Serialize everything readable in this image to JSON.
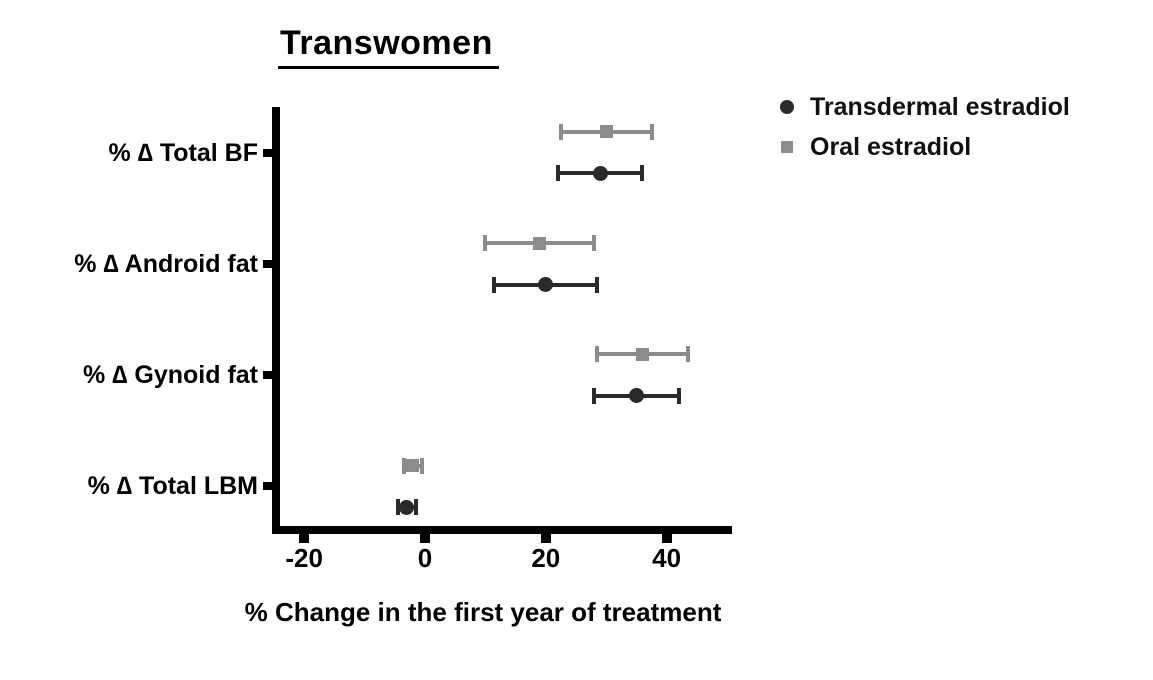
{
  "chart_data": {
    "type": "scatter",
    "subtype": "forest-dot-plot-with-error-bars",
    "title": "Transwomen",
    "xlabel": "% Change in the first year of treatment",
    "categories": [
      "% ∆ Total BF",
      "% ∆ Android fat",
      "% ∆ Gynoid fat",
      "% ∆ Total LBM"
    ],
    "x_ticks": [
      "-20",
      "0",
      "20",
      "40"
    ],
    "xlim": [
      -24.6,
      50.8
    ],
    "grid": false,
    "legend_position": "top-right",
    "series": [
      {
        "name": "Transdermal estradiol",
        "marker": "circle",
        "color": "#2a2a2a",
        "values": [
          29,
          20,
          35,
          -3
        ],
        "ci_low": [
          22,
          11.5,
          28,
          -4.5
        ],
        "ci_high": [
          36,
          28.5,
          42,
          -1.5
        ]
      },
      {
        "name": "Oral estradiol",
        "marker": "square",
        "color": "#8c8c8c",
        "values": [
          30,
          19,
          36,
          -2
        ],
        "ci_low": [
          22.5,
          10,
          28.5,
          -3.5
        ],
        "ci_high": [
          37.5,
          28,
          43.5,
          -0.5
        ]
      }
    ],
    "colors": {
      "axis": "#000000",
      "transdermal": "#2a2a2a",
      "oral": "#8c8c8c",
      "background": "#ffffff"
    }
  }
}
